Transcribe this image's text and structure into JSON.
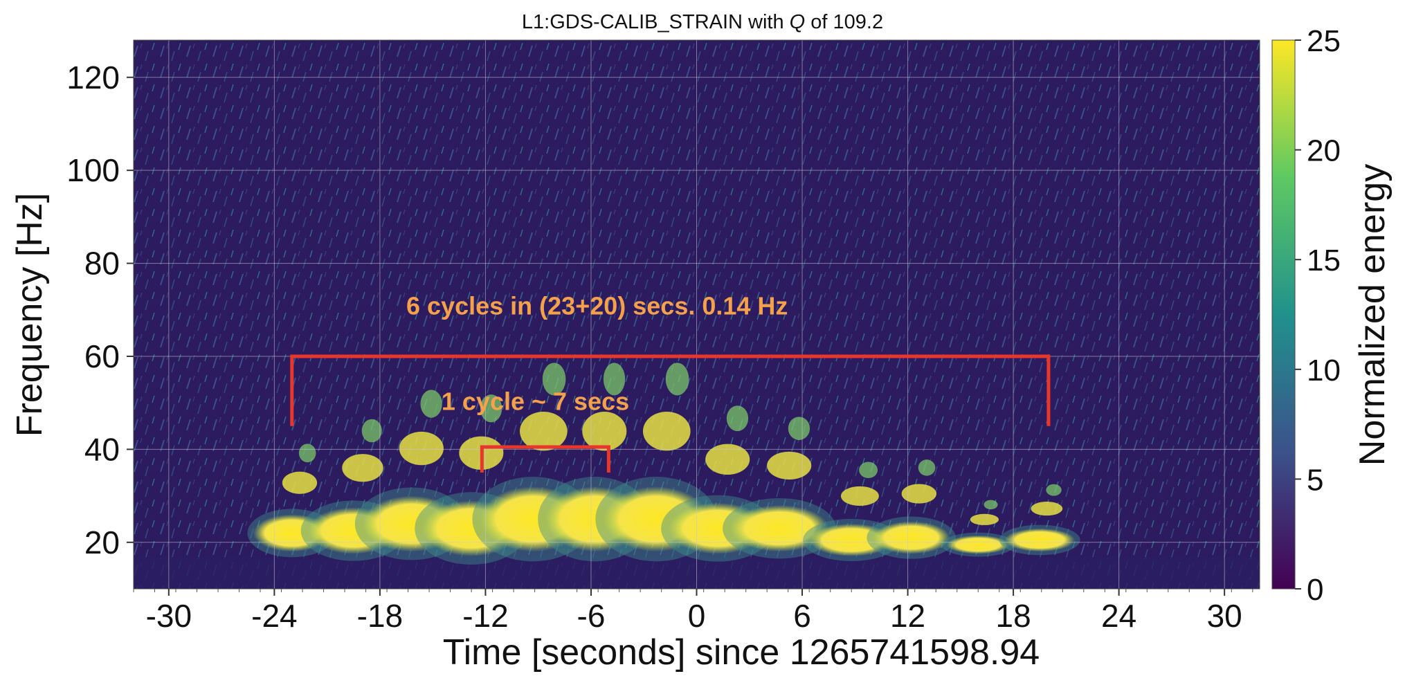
{
  "chart_data": {
    "type": "heatmap",
    "title": "L1:GDS-CALIB_STRAIN with Q of 109.2",
    "title_q_symbol": "Q",
    "xlabel": "Time [seconds] since 1265741598.94",
    "ylabel": "Frequency [Hz]",
    "colorbar_label": "Normalized energy",
    "xlim": [
      -32,
      32
    ],
    "ylim": [
      10,
      128
    ],
    "x_ticks": [
      "-30",
      "-24",
      "-18",
      "-12",
      "-6",
      "0",
      "6",
      "12",
      "18",
      "24",
      "30"
    ],
    "x_tick_values": [
      -30,
      -24,
      -18,
      -12,
      -6,
      0,
      6,
      12,
      18,
      24,
      30
    ],
    "y_ticks": [
      "20",
      "40",
      "60",
      "80",
      "100",
      "120"
    ],
    "y_tick_values": [
      20,
      40,
      60,
      80,
      100,
      120
    ],
    "colorbar_range": [
      0,
      25
    ],
    "colorbar_ticks": [
      "0",
      "5",
      "10",
      "15",
      "20",
      "25"
    ],
    "colorbar_tick_values": [
      0,
      5,
      10,
      15,
      20,
      25
    ],
    "colormap": "viridis",
    "grid": true,
    "colors": {
      "background": "#2a1a5e",
      "annotation_text": "#f5a04a",
      "bracket": "#e8372a",
      "blob": "#f5e44a"
    },
    "blobs": [
      {
        "t": -23,
        "f": 22,
        "w": 2.2,
        "h": 4
      },
      {
        "t": -19.5,
        "f": 22.5,
        "w": 2.6,
        "h": 5
      },
      {
        "t": -16.2,
        "f": 24,
        "w": 2.8,
        "h": 6
      },
      {
        "t": -12.8,
        "f": 23,
        "w": 2.8,
        "h": 6
      },
      {
        "t": -9.3,
        "f": 25,
        "w": 3,
        "h": 7
      },
      {
        "t": -5.8,
        "f": 25,
        "w": 2.8,
        "h": 7
      },
      {
        "t": -2.3,
        "f": 25,
        "w": 3,
        "h": 7
      },
      {
        "t": 1.2,
        "f": 23,
        "w": 2.8,
        "h": 5.5
      },
      {
        "t": 4.7,
        "f": 23,
        "w": 2.8,
        "h": 5
      },
      {
        "t": 8.8,
        "f": 20.5,
        "w": 2.4,
        "h": 3.5
      },
      {
        "t": 12.2,
        "f": 21,
        "w": 2.2,
        "h": 3.5
      },
      {
        "t": 16,
        "f": 19.5,
        "w": 1.8,
        "h": 2
      },
      {
        "t": 19.5,
        "f": 20.5,
        "w": 2,
        "h": 2.5
      }
    ],
    "annotations": [
      {
        "text": "6 cycles in (23+20) secs. 0.14 Hz",
        "x": -16.5,
        "y": 69
      },
      {
        "text": "1 cycle ~ 7 secs",
        "x": -14.5,
        "y": 48.5
      }
    ],
    "brackets": [
      {
        "x1": -23,
        "x2": 20,
        "y_top": 60,
        "y_bottom": 45
      },
      {
        "x1": -12.2,
        "x2": -5,
        "y_top": 40.5,
        "y_bottom": 35
      }
    ]
  }
}
